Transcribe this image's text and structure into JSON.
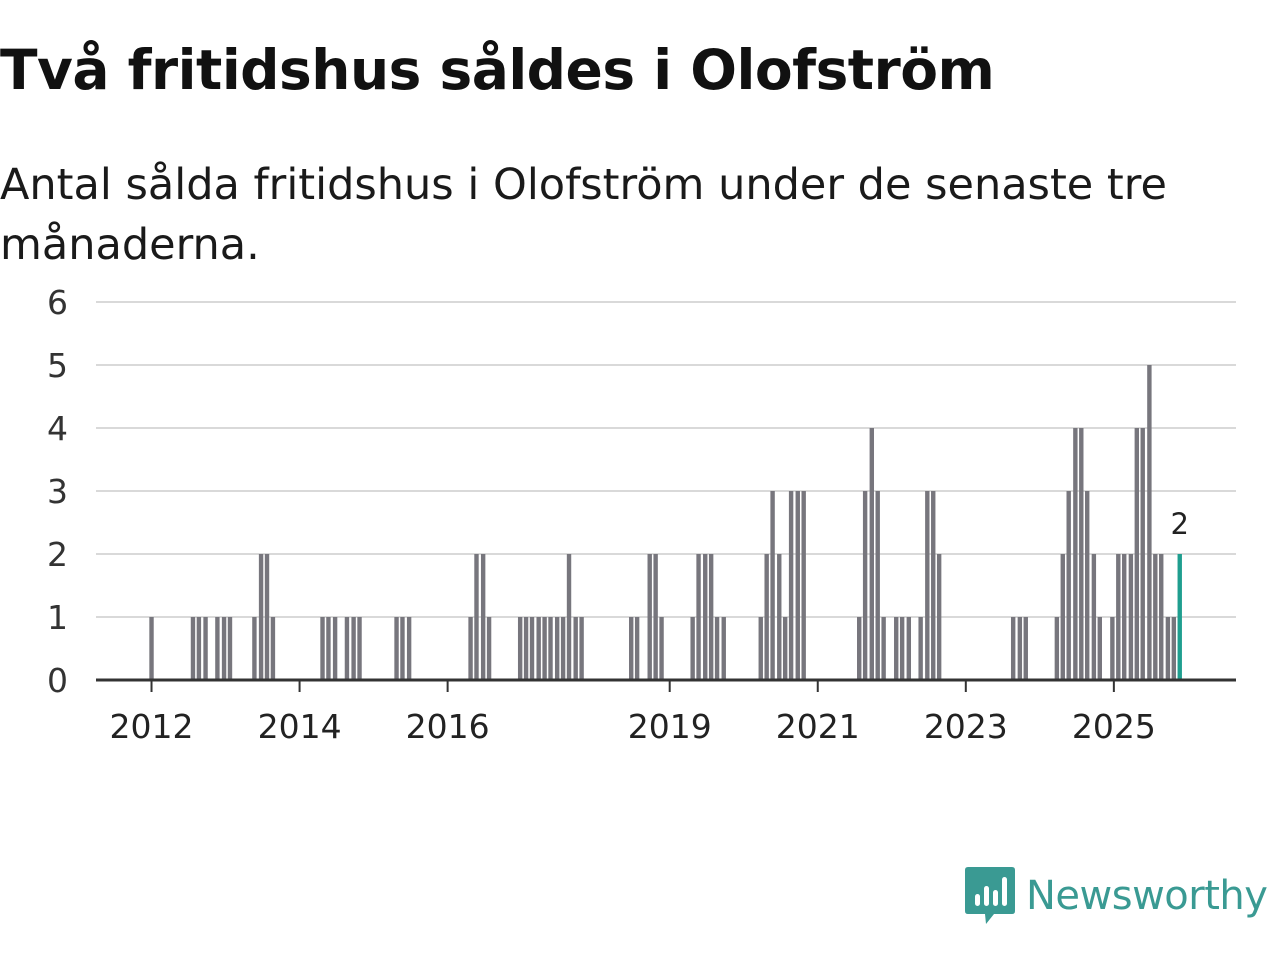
{
  "title": "Två fritidshus såldes i Olofström",
  "subtitle": "Antal sålda fritidshus i Olofström under de senaste tre månaderna.",
  "brand": {
    "name": "Newsworthy",
    "color": "#3a9a93"
  },
  "colors": {
    "bar": "#77767d",
    "highlight": "#1f9e8f",
    "grid": "#d9d9d9",
    "axis": "#333333"
  },
  "chart_data": {
    "type": "bar",
    "ylim": [
      0,
      6
    ],
    "yticks": [
      "0",
      "1",
      "2",
      "3",
      "4",
      "5",
      "6"
    ],
    "xticks": [
      {
        "label": "2012",
        "x": 2012.0
      },
      {
        "label": "2014",
        "x": 2014.0
      },
      {
        "label": "2016",
        "x": 2016.0
      },
      {
        "label": "2019",
        "x": 2019.0
      },
      {
        "label": "2021",
        "x": 2021.0
      },
      {
        "label": "2023",
        "x": 2023.0
      },
      {
        "label": "2025",
        "x": 2025.0
      }
    ],
    "x_range": [
      2011.25,
      2026.65
    ],
    "series": [
      {
        "name": "Antal sålda fritidshus",
        "values": [
          [
            2012.0,
            1
          ],
          [
            2012.56,
            1
          ],
          [
            2012.64,
            1
          ],
          [
            2012.73,
            1
          ],
          [
            2012.89,
            1
          ],
          [
            2012.98,
            1
          ],
          [
            2013.06,
            1
          ],
          [
            2013.39,
            1
          ],
          [
            2013.48,
            2
          ],
          [
            2013.56,
            2
          ],
          [
            2013.64,
            1
          ],
          [
            2014.31,
            1
          ],
          [
            2014.39,
            1
          ],
          [
            2014.48,
            1
          ],
          [
            2014.64,
            1
          ],
          [
            2014.73,
            1
          ],
          [
            2014.81,
            1
          ],
          [
            2015.31,
            1
          ],
          [
            2015.39,
            1
          ],
          [
            2015.48,
            1
          ],
          [
            2016.31,
            1
          ],
          [
            2016.39,
            2
          ],
          [
            2016.48,
            2
          ],
          [
            2016.56,
            1
          ],
          [
            2016.98,
            1
          ],
          [
            2017.06,
            1
          ],
          [
            2017.14,
            1
          ],
          [
            2017.23,
            1
          ],
          [
            2017.31,
            1
          ],
          [
            2017.39,
            1
          ],
          [
            2017.48,
            1
          ],
          [
            2017.56,
            1
          ],
          [
            2017.64,
            2
          ],
          [
            2017.73,
            1
          ],
          [
            2017.81,
            1
          ],
          [
            2018.48,
            1
          ],
          [
            2018.56,
            1
          ],
          [
            2018.73,
            2
          ],
          [
            2018.81,
            2
          ],
          [
            2018.89,
            1
          ],
          [
            2019.31,
            1
          ],
          [
            2019.39,
            2
          ],
          [
            2019.48,
            2
          ],
          [
            2019.56,
            2
          ],
          [
            2019.64,
            1
          ],
          [
            2019.73,
            1
          ],
          [
            2020.23,
            1
          ],
          [
            2020.31,
            2
          ],
          [
            2020.39,
            3
          ],
          [
            2020.48,
            2
          ],
          [
            2020.56,
            1
          ],
          [
            2020.64,
            3
          ],
          [
            2020.73,
            3
          ],
          [
            2020.81,
            3
          ],
          [
            2021.56,
            1
          ],
          [
            2021.64,
            3
          ],
          [
            2021.73,
            4
          ],
          [
            2021.81,
            3
          ],
          [
            2021.89,
            1
          ],
          [
            2022.06,
            1
          ],
          [
            2022.14,
            1
          ],
          [
            2022.23,
            1
          ],
          [
            2022.39,
            1
          ],
          [
            2022.48,
            3
          ],
          [
            2022.56,
            3
          ],
          [
            2022.64,
            2
          ],
          [
            2023.64,
            1
          ],
          [
            2023.73,
            1
          ],
          [
            2023.81,
            1
          ],
          [
            2024.23,
            1
          ],
          [
            2024.31,
            2
          ],
          [
            2024.39,
            3
          ],
          [
            2024.48,
            4
          ],
          [
            2024.56,
            4
          ],
          [
            2024.64,
            3
          ],
          [
            2024.73,
            2
          ],
          [
            2024.81,
            1
          ],
          [
            2024.98,
            1
          ],
          [
            2025.06,
            2
          ],
          [
            2025.14,
            2
          ],
          [
            2025.23,
            2
          ],
          [
            2025.31,
            4
          ],
          [
            2025.39,
            4
          ],
          [
            2025.48,
            5
          ],
          [
            2025.56,
            2
          ],
          [
            2025.64,
            2
          ],
          [
            2025.73,
            1
          ],
          [
            2025.81,
            1
          ],
          [
            2025.89,
            2
          ]
        ]
      }
    ],
    "annotations": [
      {
        "text": "2",
        "x": 2025.89,
        "y": 2
      }
    ],
    "grid": true
  }
}
